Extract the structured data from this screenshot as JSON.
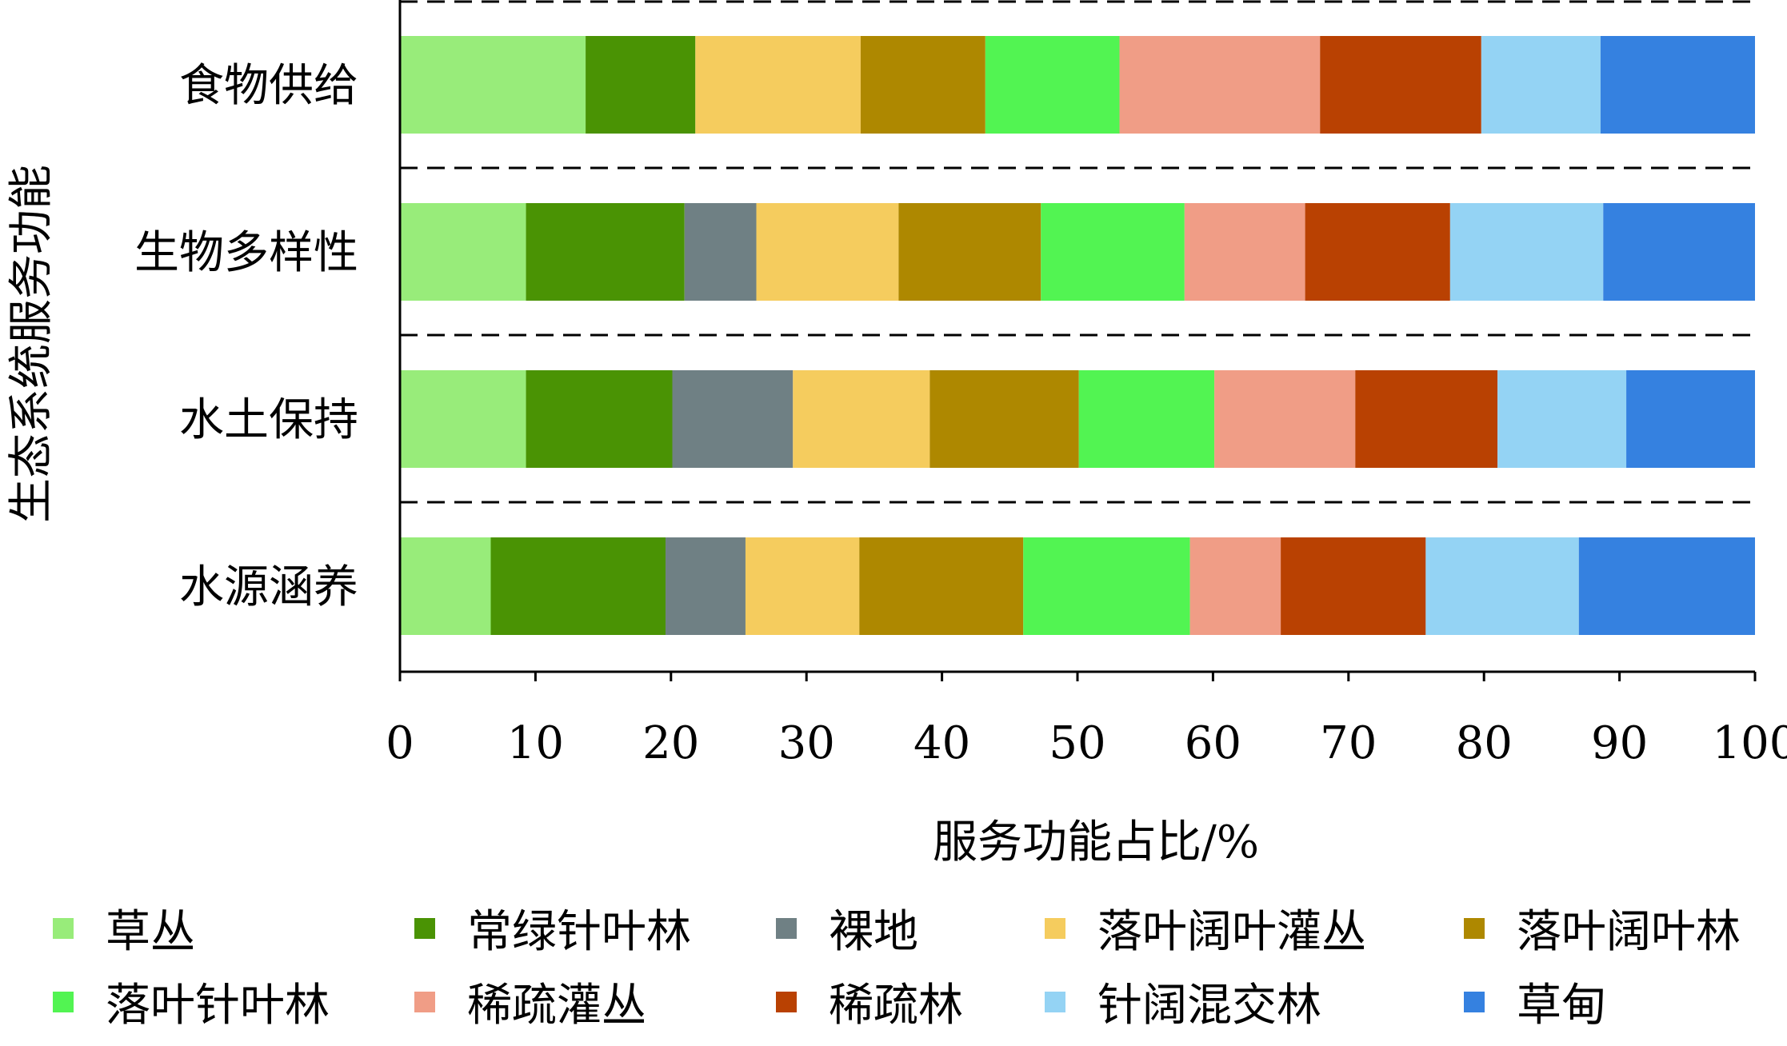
{
  "chart_data": {
    "type": "bar",
    "orientation": "horizontal",
    "stacked": true,
    "xlabel": "服务功能占比/%",
    "ylabel": "生态系统服务功能",
    "xlim": [
      0,
      100
    ],
    "x_ticks": [
      "0",
      "10",
      "20",
      "30",
      "40",
      "50",
      "60",
      "70",
      "80",
      "90",
      "100"
    ],
    "categories": [
      "食物供给",
      "生物多样性",
      "水土保持",
      "水源涵养"
    ],
    "legend_position": "bottom",
    "series": [
      {
        "name": "草丛",
        "color": "#98EC7A",
        "values": [
          13.7,
          9.3,
          9.3,
          6.7
        ]
      },
      {
        "name": "常绿针叶林",
        "color": "#4A9304",
        "values": [
          8.1,
          11.7,
          10.8,
          12.9
        ]
      },
      {
        "name": "裸地",
        "color": "#6F8084",
        "values": [
          0,
          5.3,
          8.9,
          5.9
        ]
      },
      {
        "name": "落叶阔叶灌丛",
        "color": "#F5CC5E",
        "values": [
          12.2,
          10.5,
          10.1,
          8.4
        ]
      },
      {
        "name": "落叶阔叶林",
        "color": "#AE8800",
        "values": [
          9.2,
          10.5,
          11.0,
          12.1
        ]
      },
      {
        "name": "落叶针叶林",
        "color": "#52F452",
        "values": [
          9.9,
          10.6,
          10.0,
          12.3
        ]
      },
      {
        "name": "稀疏灌丛",
        "color": "#F09D86",
        "values": [
          14.8,
          8.9,
          10.4,
          6.7
        ]
      },
      {
        "name": "稀疏林",
        "color": "#B94102",
        "values": [
          11.9,
          10.7,
          10.5,
          10.7
        ]
      },
      {
        "name": "针阔混交林",
        "color": "#94D3F4",
        "values": [
          8.8,
          11.3,
          9.5,
          11.3
        ]
      },
      {
        "name": "草甸",
        "color": "#3581E0",
        "values": [
          11.4,
          11.2,
          9.5,
          13.0
        ]
      }
    ]
  }
}
